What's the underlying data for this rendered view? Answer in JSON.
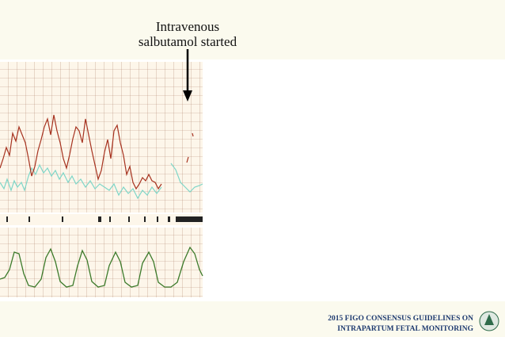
{
  "caption": {
    "line1": "Intravenous",
    "line2": "salbutamol started"
  },
  "footer": {
    "line1": "2015 FIGO CONSENSUS GUIDELINES ON",
    "line2": "INTRAPARTUM FETAL MONITORING"
  }
}
